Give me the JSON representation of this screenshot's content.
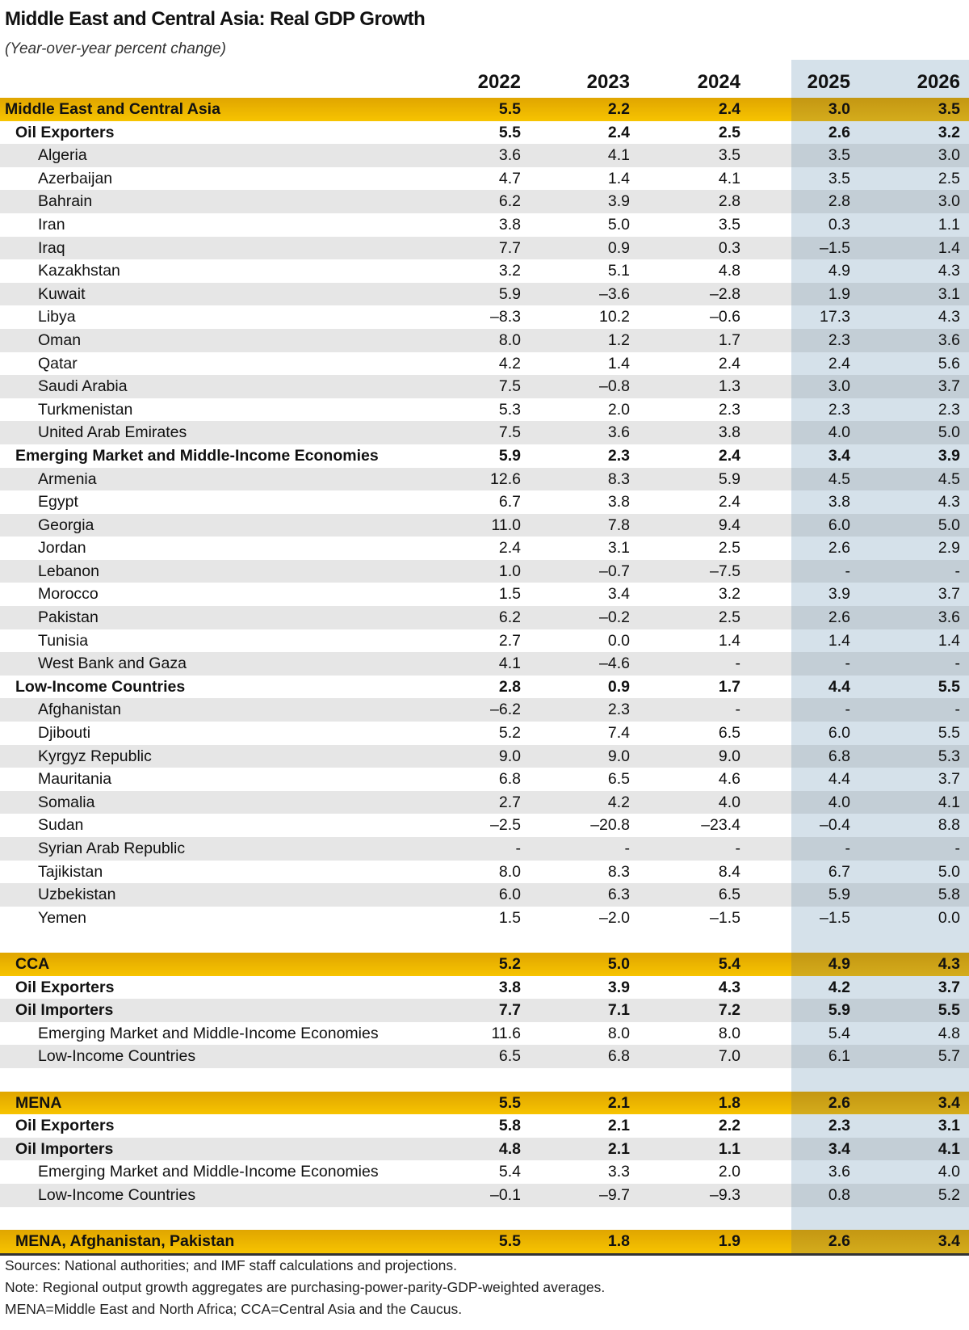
{
  "title": "Middle East and Central Asia: Real GDP Growth",
  "subtitle": "(Year-over-year percent change)",
  "colors": {
    "region_band": "#f0b800",
    "projection_shade": "#d5e1ea",
    "stripe": "#e6e6e6"
  },
  "columns": [
    "2022",
    "2023",
    "2024",
    "2025",
    "2026"
  ],
  "rows": [
    {
      "type": "region",
      "label": "Middle East and Central Asia",
      "values": [
        "5.5",
        "2.2",
        "2.4",
        "3.0",
        "3.5"
      ]
    },
    {
      "type": "group",
      "label": "Oil Exporters",
      "values": [
        "5.5",
        "2.4",
        "2.5",
        "2.6",
        "3.2"
      ]
    },
    {
      "type": "item",
      "label": "Algeria",
      "values": [
        "3.6",
        "4.1",
        "3.5",
        "3.5",
        "3.0"
      ]
    },
    {
      "type": "item",
      "label": "Azerbaijan",
      "values": [
        "4.7",
        "1.4",
        "4.1",
        "3.5",
        "2.5"
      ]
    },
    {
      "type": "item",
      "label": "Bahrain",
      "values": [
        "6.2",
        "3.9",
        "2.8",
        "2.8",
        "3.0"
      ]
    },
    {
      "type": "item",
      "label": "Iran",
      "values": [
        "3.8",
        "5.0",
        "3.5",
        "0.3",
        "1.1"
      ]
    },
    {
      "type": "item",
      "label": "Iraq",
      "values": [
        "7.7",
        "0.9",
        "0.3",
        "–1.5",
        "1.4"
      ]
    },
    {
      "type": "item",
      "label": "Kazakhstan",
      "values": [
        "3.2",
        "5.1",
        "4.8",
        "4.9",
        "4.3"
      ]
    },
    {
      "type": "item",
      "label": "Kuwait",
      "values": [
        "5.9",
        "–3.6",
        "–2.8",
        "1.9",
        "3.1"
      ]
    },
    {
      "type": "item",
      "label": "Libya",
      "values": [
        "–8.3",
        "10.2",
        "–0.6",
        "17.3",
        "4.3"
      ]
    },
    {
      "type": "item",
      "label": "Oman",
      "values": [
        "8.0",
        "1.2",
        "1.7",
        "2.3",
        "3.6"
      ]
    },
    {
      "type": "item",
      "label": "Qatar",
      "values": [
        "4.2",
        "1.4",
        "2.4",
        "2.4",
        "5.6"
      ]
    },
    {
      "type": "item",
      "label": "Saudi Arabia",
      "values": [
        "7.5",
        "–0.8",
        "1.3",
        "3.0",
        "3.7"
      ]
    },
    {
      "type": "item",
      "label": "Turkmenistan",
      "values": [
        "5.3",
        "2.0",
        "2.3",
        "2.3",
        "2.3"
      ]
    },
    {
      "type": "item",
      "label": "United Arab Emirates",
      "values": [
        "7.5",
        "3.6",
        "3.8",
        "4.0",
        "5.0"
      ]
    },
    {
      "type": "group",
      "label": "Emerging Market and Middle-Income Economies",
      "values": [
        "5.9",
        "2.3",
        "2.4",
        "3.4",
        "3.9"
      ]
    },
    {
      "type": "item",
      "label": "Armenia",
      "values": [
        "12.6",
        "8.3",
        "5.9",
        "4.5",
        "4.5"
      ]
    },
    {
      "type": "item",
      "label": "Egypt",
      "values": [
        "6.7",
        "3.8",
        "2.4",
        "3.8",
        "4.3"
      ]
    },
    {
      "type": "item",
      "label": "Georgia",
      "values": [
        "11.0",
        "7.8",
        "9.4",
        "6.0",
        "5.0"
      ]
    },
    {
      "type": "item",
      "label": "Jordan",
      "values": [
        "2.4",
        "3.1",
        "2.5",
        "2.6",
        "2.9"
      ]
    },
    {
      "type": "item",
      "label": "Lebanon",
      "values": [
        "1.0",
        "–0.7",
        "–7.5",
        "-",
        "-"
      ]
    },
    {
      "type": "item",
      "label": "Morocco",
      "values": [
        "1.5",
        "3.4",
        "3.2",
        "3.9",
        "3.7"
      ]
    },
    {
      "type": "item",
      "label": "Pakistan",
      "values": [
        "6.2",
        "–0.2",
        "2.5",
        "2.6",
        "3.6"
      ]
    },
    {
      "type": "item",
      "label": "Tunisia",
      "values": [
        "2.7",
        "0.0",
        "1.4",
        "1.4",
        "1.4"
      ]
    },
    {
      "type": "item",
      "label": "West Bank and Gaza",
      "values": [
        "4.1",
        "–4.6",
        "-",
        "-",
        "-"
      ]
    },
    {
      "type": "group",
      "label": "Low-Income Countries",
      "values": [
        "2.8",
        "0.9",
        "1.7",
        "4.4",
        "5.5"
      ]
    },
    {
      "type": "item",
      "label": "Afghanistan",
      "values": [
        "–6.2",
        "2.3",
        "-",
        "-",
        "-"
      ]
    },
    {
      "type": "item",
      "label": "Djibouti",
      "values": [
        "5.2",
        "7.4",
        "6.5",
        "6.0",
        "5.5"
      ]
    },
    {
      "type": "item",
      "label": "Kyrgyz Republic",
      "values": [
        "9.0",
        "9.0",
        "9.0",
        "6.8",
        "5.3"
      ]
    },
    {
      "type": "item",
      "label": "Mauritania",
      "values": [
        "6.8",
        "6.5",
        "4.6",
        "4.4",
        "3.7"
      ]
    },
    {
      "type": "item",
      "label": "Somalia",
      "values": [
        "2.7",
        "4.2",
        "4.0",
        "4.0",
        "4.1"
      ]
    },
    {
      "type": "item",
      "label": "Sudan",
      "values": [
        "–2.5",
        "–20.8",
        "–23.4",
        "–0.4",
        "8.8"
      ]
    },
    {
      "type": "item",
      "label": "Syrian Arab Republic",
      "values": [
        "-",
        "-",
        "-",
        "-",
        "-"
      ]
    },
    {
      "type": "item",
      "label": "Tajikistan",
      "values": [
        "8.0",
        "8.3",
        "8.4",
        "6.7",
        "5.0"
      ]
    },
    {
      "type": "item",
      "label": "Uzbekistan",
      "values": [
        "6.0",
        "6.3",
        "6.5",
        "5.9",
        "5.8"
      ]
    },
    {
      "type": "item",
      "label": "Yemen",
      "values": [
        "1.5",
        "–2.0",
        "–1.5",
        "–1.5",
        "0.0"
      ]
    },
    {
      "type": "blank"
    },
    {
      "type": "region",
      "label": "CCA",
      "values": [
        "5.2",
        "5.0",
        "5.4",
        "4.9",
        "4.3"
      ]
    },
    {
      "type": "group",
      "label": "Oil Exporters",
      "values": [
        "3.8",
        "3.9",
        "4.3",
        "4.2",
        "3.7"
      ]
    },
    {
      "type": "group",
      "label": "Oil Importers",
      "values": [
        "7.7",
        "7.1",
        "7.2",
        "5.9",
        "5.5"
      ]
    },
    {
      "type": "item",
      "label": "Emerging Market and Middle-Income Economies",
      "values": [
        "11.6",
        "8.0",
        "8.0",
        "5.4",
        "4.8"
      ]
    },
    {
      "type": "item",
      "label": "Low-Income Countries",
      "values": [
        "6.5",
        "6.8",
        "7.0",
        "6.1",
        "5.7"
      ]
    },
    {
      "type": "blank"
    },
    {
      "type": "region",
      "label": "MENA",
      "values": [
        "5.5",
        "2.1",
        "1.8",
        "2.6",
        "3.4"
      ]
    },
    {
      "type": "group",
      "label": "Oil Exporters",
      "values": [
        "5.8",
        "2.1",
        "2.2",
        "2.3",
        "3.1"
      ]
    },
    {
      "type": "group",
      "label": "Oil Importers",
      "values": [
        "4.8",
        "2.1",
        "1.1",
        "3.4",
        "4.1"
      ]
    },
    {
      "type": "item",
      "label": "Emerging Market and Middle-Income Economies",
      "values": [
        "5.4",
        "3.3",
        "2.0",
        "3.6",
        "4.0"
      ]
    },
    {
      "type": "item",
      "label": "Low-Income Countries",
      "values": [
        "–0.1",
        "–9.7",
        "–9.3",
        "0.8",
        "5.2"
      ]
    },
    {
      "type": "blank"
    },
    {
      "type": "region",
      "label": "MENA, Afghanistan, Pakistan",
      "values": [
        "5.5",
        "1.8",
        "1.9",
        "2.6",
        "3.4"
      ]
    }
  ],
  "footnotes": [
    "Sources: National authorities; and IMF staff calculations and projections.",
    "Note: Regional output growth aggregates are purchasing-power-parity-GDP-weighted averages.",
    "MENA=Middle East and North Africa; CCA=Central Asia and the Caucus."
  ]
}
